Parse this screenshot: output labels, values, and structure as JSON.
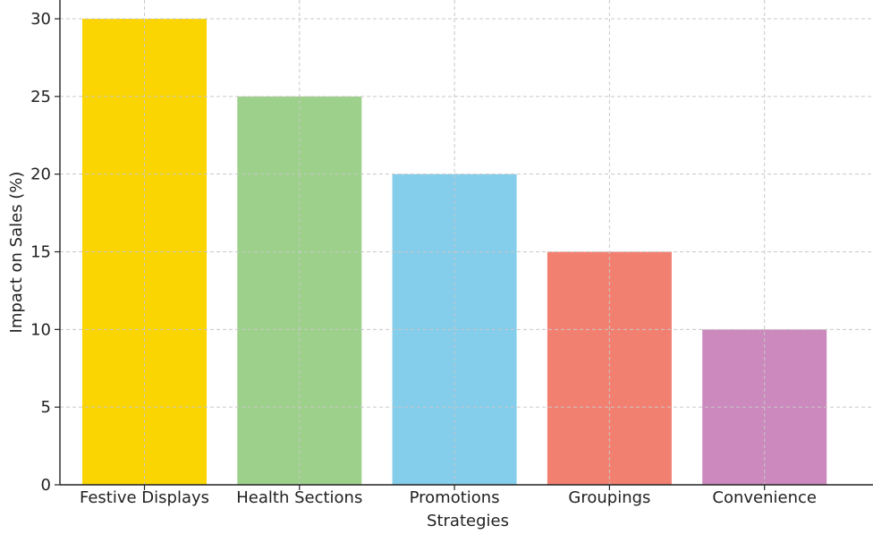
{
  "chart_data": {
    "type": "bar",
    "title": "",
    "xlabel": "Strategies",
    "ylabel": "Impact on Sales (%)",
    "categories": [
      "Festive Displays",
      "Health Sections",
      "Promotions",
      "Groupings",
      "Convenience"
    ],
    "values": [
      30,
      25,
      20,
      15,
      10
    ],
    "colors": [
      "#FAD501",
      "#9DD08A",
      "#84CDEB",
      "#F28071",
      "#CB89BD"
    ],
    "ylim": [
      0,
      30
    ],
    "yticks": [
      0,
      5,
      10,
      15,
      20,
      25,
      30
    ],
    "grid": true,
    "grid_style": "dashed",
    "legend": "none"
  }
}
